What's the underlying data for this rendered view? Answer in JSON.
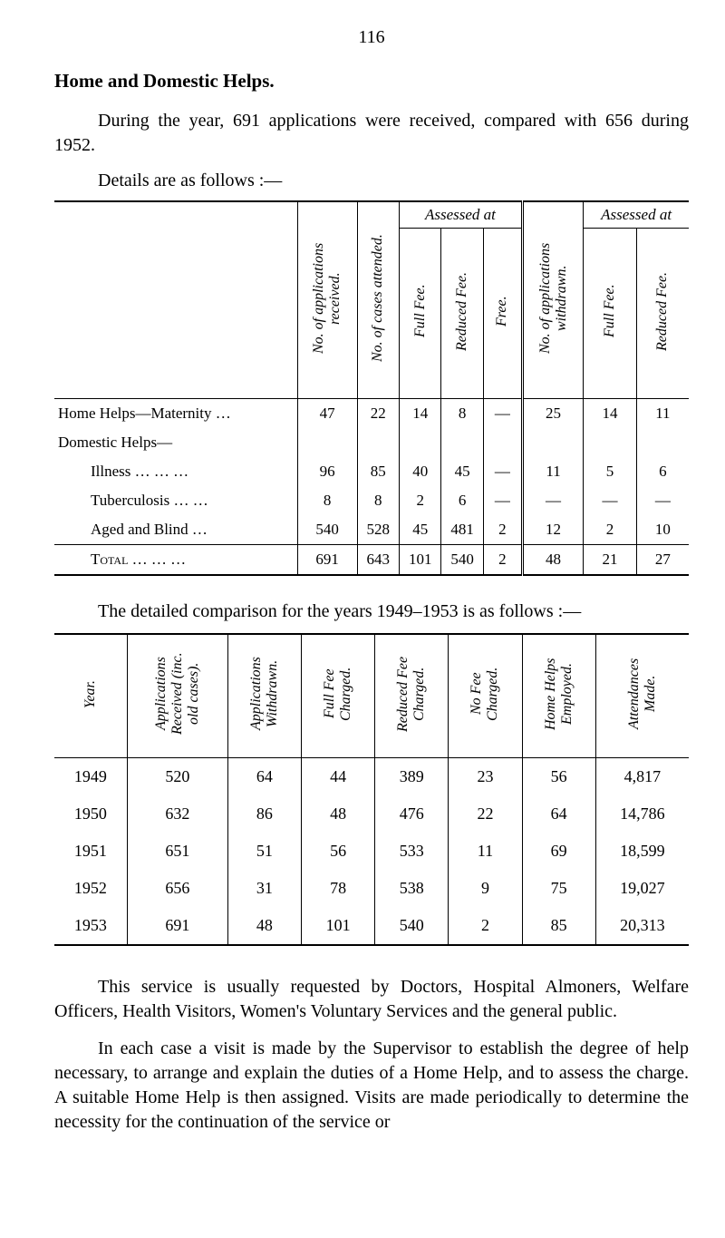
{
  "page_number": "116",
  "heading": "Home and Domestic Helps.",
  "intro": "During the year, 691 applications were received, compared with 656 during 1952.",
  "details_line": "Details are as follows :—",
  "t1": {
    "col_labels": {
      "apps_received": "No. of applications received.",
      "cases_attended": "No. of cases attended.",
      "assessed_at_a": "Assessed at",
      "full_fee_a": "Full Fee.",
      "reduced_fee_a": "Reduced Fee.",
      "free_a": "Free.",
      "apps_withdrawn": "No. of applications withdrawn.",
      "assessed_at_b": "Assessed at",
      "full_fee_b": "Full Fee.",
      "reduced_fee_b": "Reduced Fee."
    },
    "rows": {
      "maternity": {
        "label": "Home Helps—Maternity     …",
        "apps": "47",
        "cases": "22",
        "ff": "14",
        "rf": "8",
        "free": "—",
        "wd": "25",
        "ff2": "14",
        "rf2": "11"
      },
      "domestic_header": {
        "label": "Domestic Helps—"
      },
      "illness": {
        "label": "Illness     …     …     …",
        "apps": "96",
        "cases": "85",
        "ff": "40",
        "rf": "45",
        "free": "—",
        "wd": "11",
        "ff2": "5",
        "rf2": "6"
      },
      "tb": {
        "label": "Tuberculosis     …     …",
        "apps": "8",
        "cases": "8",
        "ff": "2",
        "rf": "6",
        "free": "—",
        "wd": "—",
        "ff2": "—",
        "rf2": "—"
      },
      "aged": {
        "label": "Aged and Blind          …",
        "apps": "540",
        "cases": "528",
        "ff": "45",
        "rf": "481",
        "free": "2",
        "wd": "12",
        "ff2": "2",
        "rf2": "10"
      },
      "total": {
        "label": "Total     …     …     …",
        "apps": "691",
        "cases": "643",
        "ff": "101",
        "rf": "540",
        "free": "2",
        "wd": "48",
        "ff2": "21",
        "rf2": "27"
      }
    }
  },
  "compare_line": "The detailed comparison for the years 1949–1953 is as follows :—",
  "t2": {
    "headers": {
      "year": "Year.",
      "apps_rec": "Applications Received (inc. old cases).",
      "apps_wd": "Applications Withdrawn.",
      "full_fee": "Full Fee Charged.",
      "reduced_fee": "Reduced Fee Charged.",
      "no_fee": "No Fee Charged.",
      "helps": "Home Helps Employed.",
      "attend": "Attendances Made."
    },
    "rows": [
      {
        "year": "1949",
        "apps": "520",
        "wd": "64",
        "ff": "44",
        "rf": "389",
        "nf": "23",
        "hh": "56",
        "att": "4,817"
      },
      {
        "year": "1950",
        "apps": "632",
        "wd": "86",
        "ff": "48",
        "rf": "476",
        "nf": "22",
        "hh": "64",
        "att": "14,786"
      },
      {
        "year": "1951",
        "apps": "651",
        "wd": "51",
        "ff": "56",
        "rf": "533",
        "nf": "11",
        "hh": "69",
        "att": "18,599"
      },
      {
        "year": "1952",
        "apps": "656",
        "wd": "31",
        "ff": "78",
        "rf": "538",
        "nf": "9",
        "hh": "75",
        "att": "19,027"
      },
      {
        "year": "1953",
        "apps": "691",
        "wd": "48",
        "ff": "101",
        "rf": "540",
        "nf": "2",
        "hh": "85",
        "att": "20,313"
      }
    ]
  },
  "para1": "This service is usually requested by Doctors, Hospital Almoners, Welfare Officers, Health Visitors, Women's Voluntary Services and the general public.",
  "para2": "In each case a visit is made by the Supervisor to establish the degree of help necessary, to arrange and explain the duties of a Home Help, and to assess the charge. A suitable Home Help is then assigned. Visits are made periodically to determine the necessity for the continuation of the service or"
}
